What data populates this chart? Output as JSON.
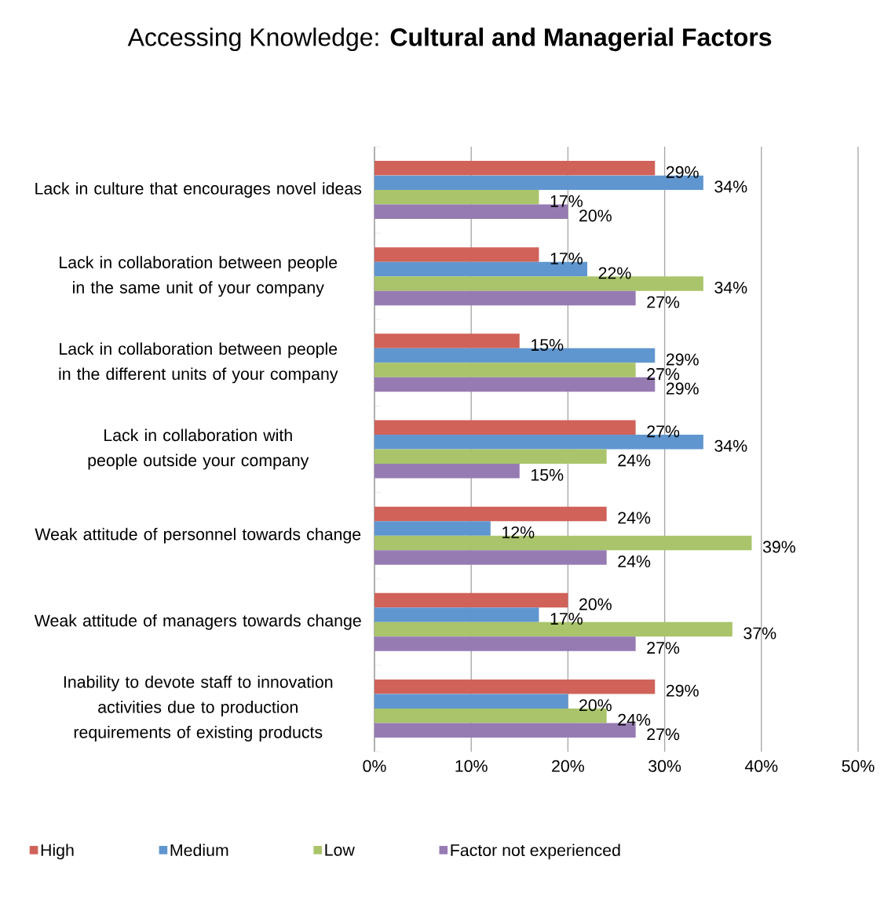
{
  "chart_data": {
    "type": "bar",
    "orientation": "horizontal",
    "title": "Accessing Knowledge: **Cultural and Managerial Factors**",
    "categories": [
      "Lack in culture that encourages novel ideas",
      "Lack in collaboration between people in the same unit of your company",
      "Lack in collaboration between people in the different units of your company",
      "Lack in collaboration with people outside your company",
      "Weak attitude of personnel towards change",
      "Weak attitude of managers towards change",
      "Inability to devote staff to innovation activities due to production requirements of existing products"
    ],
    "series": [
      {
        "name": "High",
        "color": "#d0625a",
        "values": [
          29,
          17,
          15,
          27,
          24,
          20,
          29
        ],
        "value_labels": [
          "29%",
          "17%",
          "15%",
          "27%",
          "24%",
          "20%",
          "29%"
        ]
      },
      {
        "name": "Medium",
        "color": "#6096cf",
        "values": [
          34,
          22,
          29,
          34,
          12,
          17,
          20
        ],
        "value_labels": [
          "34%",
          "22%",
          "29%",
          "34%",
          "12%",
          "17%",
          "20%"
        ]
      },
      {
        "name": "Low",
        "color": "#a9c46a",
        "values": [
          17,
          34,
          27,
          24,
          39,
          37,
          24
        ],
        "value_labels": [
          "17%",
          "34%",
          "27%",
          "24%",
          "39%",
          "37%",
          "24%"
        ]
      },
      {
        "name": "Factor not experienced",
        "color": "#967bb3",
        "values": [
          20,
          27,
          29,
          15,
          24,
          27,
          27
        ],
        "value_labels": [
          "20%",
          "27%",
          "29%",
          "15%",
          "24%",
          "27%",
          "27%"
        ]
      }
    ],
    "xlim": [
      0,
      50
    ],
    "xticks": [
      {
        "value": 0,
        "label": "0%"
      },
      {
        "value": 10,
        "label": "10%"
      },
      {
        "value": 20,
        "label": "20%"
      },
      {
        "value": 30,
        "label": "30%"
      },
      {
        "value": 40,
        "label": "40%"
      },
      {
        "value": 50,
        "label": "50%"
      }
    ],
    "grid": "x",
    "legend": "bottom"
  }
}
